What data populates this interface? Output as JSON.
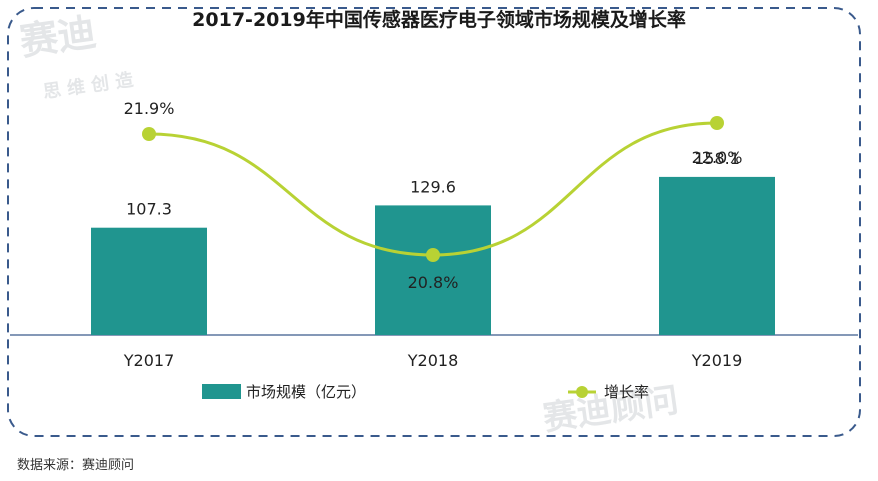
{
  "chart_data": {
    "type": "bar+line",
    "title": "2017-2019年中国传感器医疗电子领域市场规模及增长率",
    "categories": [
      "Y2017",
      "Y2018",
      "Y2019"
    ],
    "series": [
      {
        "name": "市场规模（亿元）",
        "type": "bar",
        "values": [
          107.3,
          129.6,
          158.1
        ],
        "labels": [
          "107.3",
          "129.6",
          "158.1"
        ],
        "color": "#20958f"
      },
      {
        "name": "增长率",
        "type": "line",
        "values": [
          21.9,
          20.8,
          22.0
        ],
        "labels": [
          "21.9%",
          "20.8%",
          "22.0%"
        ],
        "color": "#b8d234"
      }
    ],
    "legend_position": "bottom",
    "grid": false
  },
  "watermark": {
    "main": "赛迪",
    "sub": "思 维 创 造",
    "brand": "赛迪顾问"
  },
  "source": "数据来源：赛迪顾问",
  "colors": {
    "frame_border": "#3a5a8c",
    "axis": "#3a5a8c",
    "bar": "#20958f",
    "line": "#b8d234"
  }
}
